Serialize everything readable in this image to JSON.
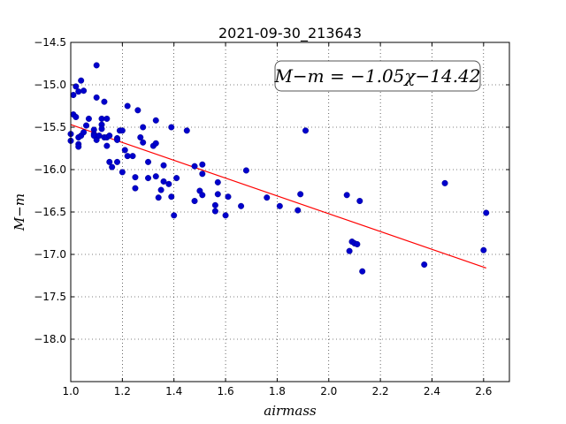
{
  "chart_data": {
    "type": "scatter",
    "title": "2021-09-30_213643",
    "xlabel": "airmass",
    "ylabel": "M−m",
    "xlim": [
      1.0,
      2.7
    ],
    "ylim": [
      -18.5,
      -14.5
    ],
    "y_inverted": true,
    "grid": true,
    "xticks": [
      1.0,
      1.2,
      1.4,
      1.6,
      1.8,
      2.0,
      2.2,
      2.4,
      2.6
    ],
    "xtick_labels": [
      "1.0",
      "1.2",
      "1.4",
      "1.6",
      "1.8",
      "2.0",
      "2.2",
      "2.4",
      "2.6"
    ],
    "yticks": [
      -14.5,
      -15.0,
      -15.5,
      -16.0,
      -16.5,
      -17.0,
      -17.5,
      -18.0
    ],
    "ytick_labels": [
      "−14.5",
      "−15.0",
      "−15.5",
      "−16.0",
      "−16.5",
      "−17.0",
      "−17.5",
      "−18.0"
    ],
    "annotation": "M−m = −1.05χ−14.42",
    "fit": {
      "slope": -1.05,
      "intercept": -14.42,
      "x_range": [
        1.0,
        2.61
      ],
      "color": "#ff0000"
    },
    "marker_color": "#0000cc",
    "points": [
      [
        1.0,
        -15.66
      ],
      [
        1.0,
        -15.58
      ],
      [
        1.01,
        -15.12
      ],
      [
        1.01,
        -15.35
      ],
      [
        1.02,
        -15.02
      ],
      [
        1.02,
        -15.38
      ],
      [
        1.03,
        -15.08
      ],
      [
        1.03,
        -15.62
      ],
      [
        1.03,
        -15.7
      ],
      [
        1.03,
        -15.73
      ],
      [
        1.04,
        -14.95
      ],
      [
        1.04,
        -15.6
      ],
      [
        1.05,
        -15.07
      ],
      [
        1.05,
        -15.56
      ],
      [
        1.06,
        -15.48
      ],
      [
        1.07,
        -15.4
      ],
      [
        1.09,
        -15.53
      ],
      [
        1.09,
        -15.58
      ],
      [
        1.09,
        -15.6
      ],
      [
        1.1,
        -14.77
      ],
      [
        1.1,
        -15.15
      ],
      [
        1.1,
        -15.65
      ],
      [
        1.11,
        -15.6
      ],
      [
        1.12,
        -15.4
      ],
      [
        1.12,
        -15.47
      ],
      [
        1.12,
        -15.52
      ],
      [
        1.13,
        -15.2
      ],
      [
        1.13,
        -15.62
      ],
      [
        1.14,
        -15.4
      ],
      [
        1.14,
        -15.62
      ],
      [
        1.14,
        -15.72
      ],
      [
        1.15,
        -15.6
      ],
      [
        1.15,
        -15.91
      ],
      [
        1.16,
        -15.97
      ],
      [
        1.18,
        -15.63
      ],
      [
        1.18,
        -15.65
      ],
      [
        1.18,
        -15.91
      ],
      [
        1.19,
        -15.54
      ],
      [
        1.2,
        -15.54
      ],
      [
        1.2,
        -16.03
      ],
      [
        1.21,
        -15.77
      ],
      [
        1.22,
        -15.25
      ],
      [
        1.22,
        -15.84
      ],
      [
        1.24,
        -15.84
      ],
      [
        1.25,
        -16.09
      ],
      [
        1.25,
        -16.22
      ],
      [
        1.26,
        -15.3
      ],
      [
        1.27,
        -15.62
      ],
      [
        1.28,
        -15.68
      ],
      [
        1.28,
        -15.5
      ],
      [
        1.3,
        -15.91
      ],
      [
        1.3,
        -16.1
      ],
      [
        1.32,
        -15.72
      ],
      [
        1.33,
        -15.42
      ],
      [
        1.33,
        -15.69
      ],
      [
        1.33,
        -16.08
      ],
      [
        1.34,
        -16.33
      ],
      [
        1.35,
        -16.24
      ],
      [
        1.36,
        -15.95
      ],
      [
        1.36,
        -16.14
      ],
      [
        1.38,
        -16.17
      ],
      [
        1.39,
        -15.5
      ],
      [
        1.39,
        -16.32
      ],
      [
        1.4,
        -16.54
      ],
      [
        1.41,
        -16.1
      ],
      [
        1.45,
        -15.54
      ],
      [
        1.48,
        -15.96
      ],
      [
        1.48,
        -16.37
      ],
      [
        1.5,
        -16.25
      ],
      [
        1.51,
        -15.94
      ],
      [
        1.51,
        -16.3
      ],
      [
        1.51,
        -16.05
      ],
      [
        1.56,
        -16.42
      ],
      [
        1.56,
        -16.49
      ],
      [
        1.57,
        -16.29
      ],
      [
        1.57,
        -16.15
      ],
      [
        1.6,
        -16.54
      ],
      [
        1.61,
        -16.32
      ],
      [
        1.66,
        -16.43
      ],
      [
        1.68,
        -16.01
      ],
      [
        1.76,
        -16.33
      ],
      [
        1.81,
        -16.43
      ],
      [
        1.88,
        -16.48
      ],
      [
        1.89,
        -16.29
      ],
      [
        1.91,
        -15.54
      ],
      [
        2.07,
        -16.3
      ],
      [
        2.08,
        -16.96
      ],
      [
        2.09,
        -16.85
      ],
      [
        2.1,
        -16.87
      ],
      [
        2.11,
        -16.88
      ],
      [
        2.12,
        -16.37
      ],
      [
        2.13,
        -17.2
      ],
      [
        2.37,
        -17.12
      ],
      [
        2.45,
        -16.16
      ],
      [
        2.6,
        -16.95
      ],
      [
        2.61,
        -16.51
      ]
    ]
  }
}
